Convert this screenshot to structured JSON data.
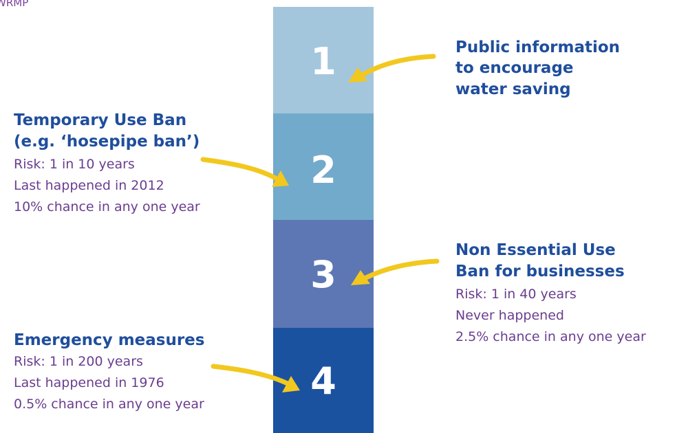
{
  "header": "WRMP",
  "levels": [
    {
      "number": "1",
      "title": [
        "Public information",
        "to encourage",
        "water saving"
      ],
      "details": []
    },
    {
      "number": "2",
      "title": [
        "Temporary Use Ban",
        "(e.g. ‘hosepipe ban’)"
      ],
      "details": [
        "Risk: 1 in 10 years",
        "Last happened in 2012",
        "10% chance in any one year"
      ]
    },
    {
      "number": "3",
      "title": [
        "Non Essential Use",
        "Ban for businesses"
      ],
      "details": [
        "Risk: 1 in 40 years",
        "Never happened",
        "2.5% chance in any one year"
      ]
    },
    {
      "number": "4",
      "title": [
        "Emergency measures"
      ],
      "details": [
        "Risk: 1 in 200 years",
        "Last happened in 1976",
        "0.5% chance in any one year"
      ]
    }
  ]
}
